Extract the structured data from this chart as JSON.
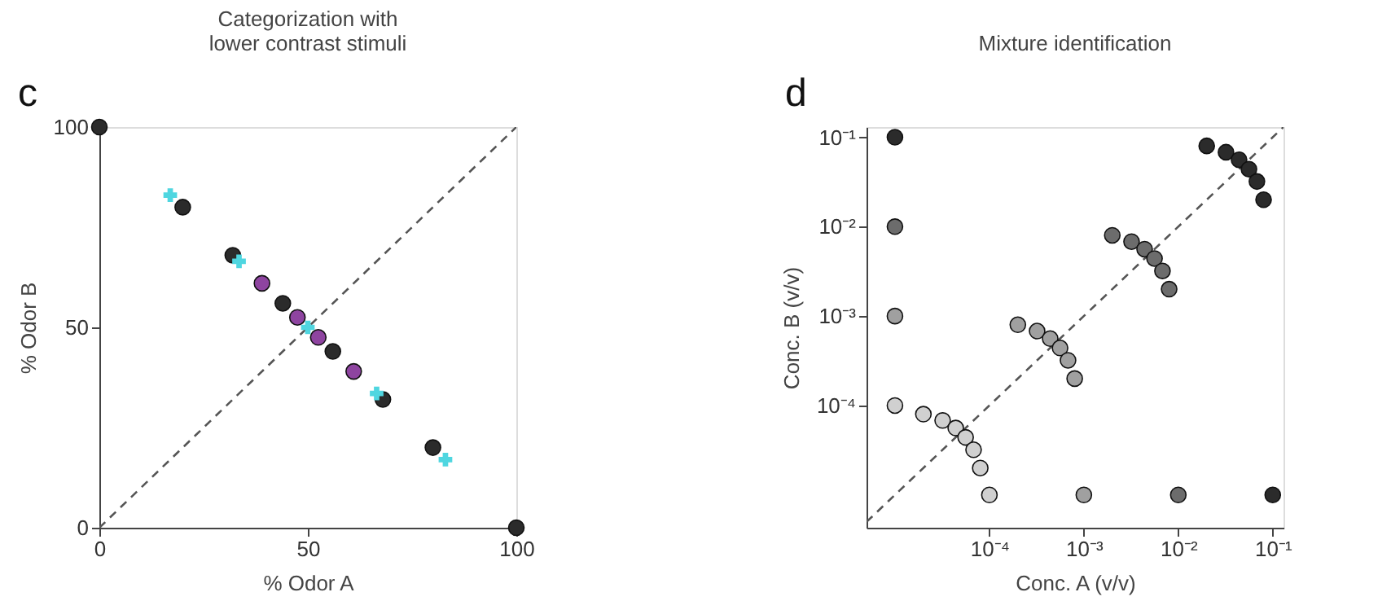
{
  "chart_data": [
    {
      "type": "scatter",
      "title": "Categorization with\nlower contrast stimuli",
      "xlabel": "% Odor A",
      "ylabel": "% Odor B",
      "annotations": [
        "c"
      ],
      "xlim": [
        0,
        100
      ],
      "ylim": [
        0,
        100
      ],
      "xticks": [
        0,
        50,
        100
      ],
      "yticks": [
        0,
        50,
        100
      ],
      "grid": false,
      "series": [
        {
          "type": "line",
          "line_style": "dashed",
          "color": "#555555",
          "x": [
            0,
            100
          ],
          "values": [
            0,
            100
          ]
        },
        {
          "marker": "circle",
          "color": "#2b2b2b",
          "x": [
            0,
            20,
            32,
            44,
            56,
            68,
            80,
            100
          ],
          "values": [
            100,
            80,
            68,
            56,
            44,
            32,
            20,
            0
          ]
        },
        {
          "marker": "circle",
          "color": "#8e44a0",
          "x": [
            39,
            47.5,
            52.5,
            61
          ],
          "values": [
            61,
            52.5,
            47.5,
            39
          ]
        },
        {
          "marker": "cross",
          "color": "#4fd6e0",
          "x": [
            17,
            33.5,
            50,
            66.5,
            83
          ],
          "values": [
            83,
            66.5,
            50,
            33.5,
            17
          ]
        }
      ]
    },
    {
      "type": "scatter",
      "title": "Mixture identification",
      "xlabel": "Conc. A (v/v)",
      "ylabel": "Conc. B (v/v)",
      "annotations": [
        "d"
      ],
      "log": "xy",
      "xlim": [
        5e-06,
        0.13
      ],
      "ylim": [
        4.3e-06,
        0.13
      ],
      "xticks": [
        {
          "value": 0.0001,
          "label": "10⁻⁴"
        },
        {
          "value": 0.001,
          "label": "10⁻³"
        },
        {
          "value": 0.01,
          "label": "10⁻²"
        },
        {
          "value": 0.1,
          "label": "10⁻¹"
        }
      ],
      "yticks": [
        {
          "value": 0.0001,
          "label": "10⁻⁴"
        },
        {
          "value": 0.001,
          "label": "10⁻³"
        },
        {
          "value": 0.01,
          "label": "10⁻²"
        },
        {
          "value": 0.1,
          "label": "10⁻¹"
        }
      ],
      "grid": false,
      "series": [
        {
          "type": "line",
          "line_style": "dashed",
          "color": "#555555",
          "x": [
            5e-06,
            0.13
          ],
          "values": [
            5e-06,
            0.13
          ]
        },
        {
          "marker": "circle",
          "color": "#d0d0d0",
          "x": [
            1e-05,
            2e-05,
            3.2e-05,
            4.4e-05,
            5.6e-05,
            6.8e-05,
            8e-05,
            0.0001
          ],
          "values": [
            0.0001,
            8e-05,
            6.8e-05,
            5.6e-05,
            4.4e-05,
            3.2e-05,
            2e-05,
            1e-05
          ]
        },
        {
          "marker": "circle",
          "color": "#a0a0a0",
          "x": [
            1e-05,
            0.0002,
            0.00032,
            0.00044,
            0.00056,
            0.00068,
            0.0008,
            0.001
          ],
          "values": [
            0.001,
            0.0008,
            0.00068,
            0.00056,
            0.00044,
            0.00032,
            0.0002,
            1e-05
          ]
        },
        {
          "marker": "circle",
          "color": "#6c6c6c",
          "x": [
            1e-05,
            0.002,
            0.0032,
            0.0044,
            0.0056,
            0.0068,
            0.008,
            0.01
          ],
          "values": [
            0.01,
            0.008,
            0.0068,
            0.0056,
            0.0044,
            0.0032,
            0.002,
            1e-05
          ]
        },
        {
          "marker": "circle",
          "color": "#2b2b2b",
          "x": [
            1e-05,
            0.02,
            0.032,
            0.044,
            0.056,
            0.068,
            0.08,
            0.1
          ],
          "values": [
            0.1,
            0.08,
            0.068,
            0.056,
            0.044,
            0.032,
            0.02,
            1e-05
          ]
        }
      ]
    }
  ]
}
